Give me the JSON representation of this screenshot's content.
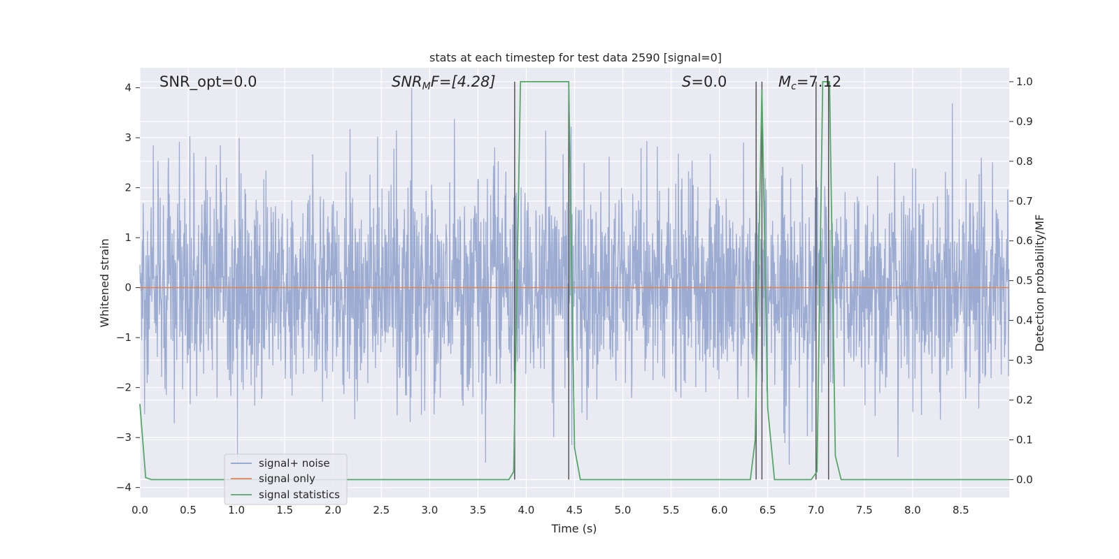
{
  "chart_data": {
    "type": "line",
    "title": "stats at each timestep for test data 2590 [signal=0]",
    "xlabel": "Time (s)",
    "ylabel": "Whitened strain",
    "y2label": "Detection probability/MF",
    "xlim": [
      0,
      9
    ],
    "ylim": [
      -4.2,
      4.4
    ],
    "y2lim": [
      -0.045,
      1.035
    ],
    "x_ticks": [
      "0.0",
      "0.5",
      "1.0",
      "1.5",
      "2.0",
      "2.5",
      "3.0",
      "3.5",
      "4.0",
      "4.5",
      "5.0",
      "5.5",
      "6.0",
      "6.5",
      "7.0",
      "7.5",
      "8.0",
      "8.5"
    ],
    "y_ticks": [
      "4",
      "3",
      "2",
      "1",
      "0",
      "−1",
      "−2",
      "−3",
      "−4"
    ],
    "y2_ticks": [
      "1.0",
      "0.9",
      "0.8",
      "0.7",
      "0.6",
      "0.5",
      "0.4",
      "0.3",
      "0.2",
      "0.1",
      "0.0"
    ],
    "grid": true,
    "legend_position": "lower-left",
    "annotations": {
      "snr_opt": "SNR_opt=0.0",
      "snr_mf_main": "SNR",
      "snr_mf_sub": "M",
      "snr_mf_rest": "F=[4.28]",
      "s_main": "S",
      "s_rest": "=0.0",
      "mc_main": "M",
      "mc_sub": "c",
      "mc_rest": "=7.12"
    },
    "series": [
      {
        "name": "signal+ noise",
        "color": "#8da0cb",
        "axis": "left",
        "description_range": [
          -3.6,
          4.0
        ],
        "x": [
          0,
          9
        ]
      },
      {
        "name": "signal only",
        "color": "#dd8452",
        "axis": "left",
        "x": [
          0,
          9
        ],
        "y": [
          0,
          0
        ]
      },
      {
        "name": "signal statistics",
        "color": "#55a868",
        "axis": "right",
        "x": [
          0.0,
          0.06,
          0.12,
          3.82,
          3.87,
          3.94,
          4.44,
          4.5,
          4.56,
          6.32,
          6.37,
          6.44,
          6.5,
          6.57,
          6.95,
          7.01,
          7.07,
          7.14,
          7.2,
          7.26,
          9.0
        ],
        "y": [
          0.19,
          0.005,
          0.0,
          0.0,
          0.02,
          1.0,
          1.0,
          0.08,
          0.0,
          0.0,
          0.1,
          0.98,
          0.18,
          0.0,
          0.0,
          0.02,
          1.0,
          1.0,
          0.06,
          0.0,
          0.0
        ]
      }
    ],
    "vlines": [
      3.88,
      4.44,
      6.38,
      6.44,
      7.0,
      7.13
    ]
  }
}
